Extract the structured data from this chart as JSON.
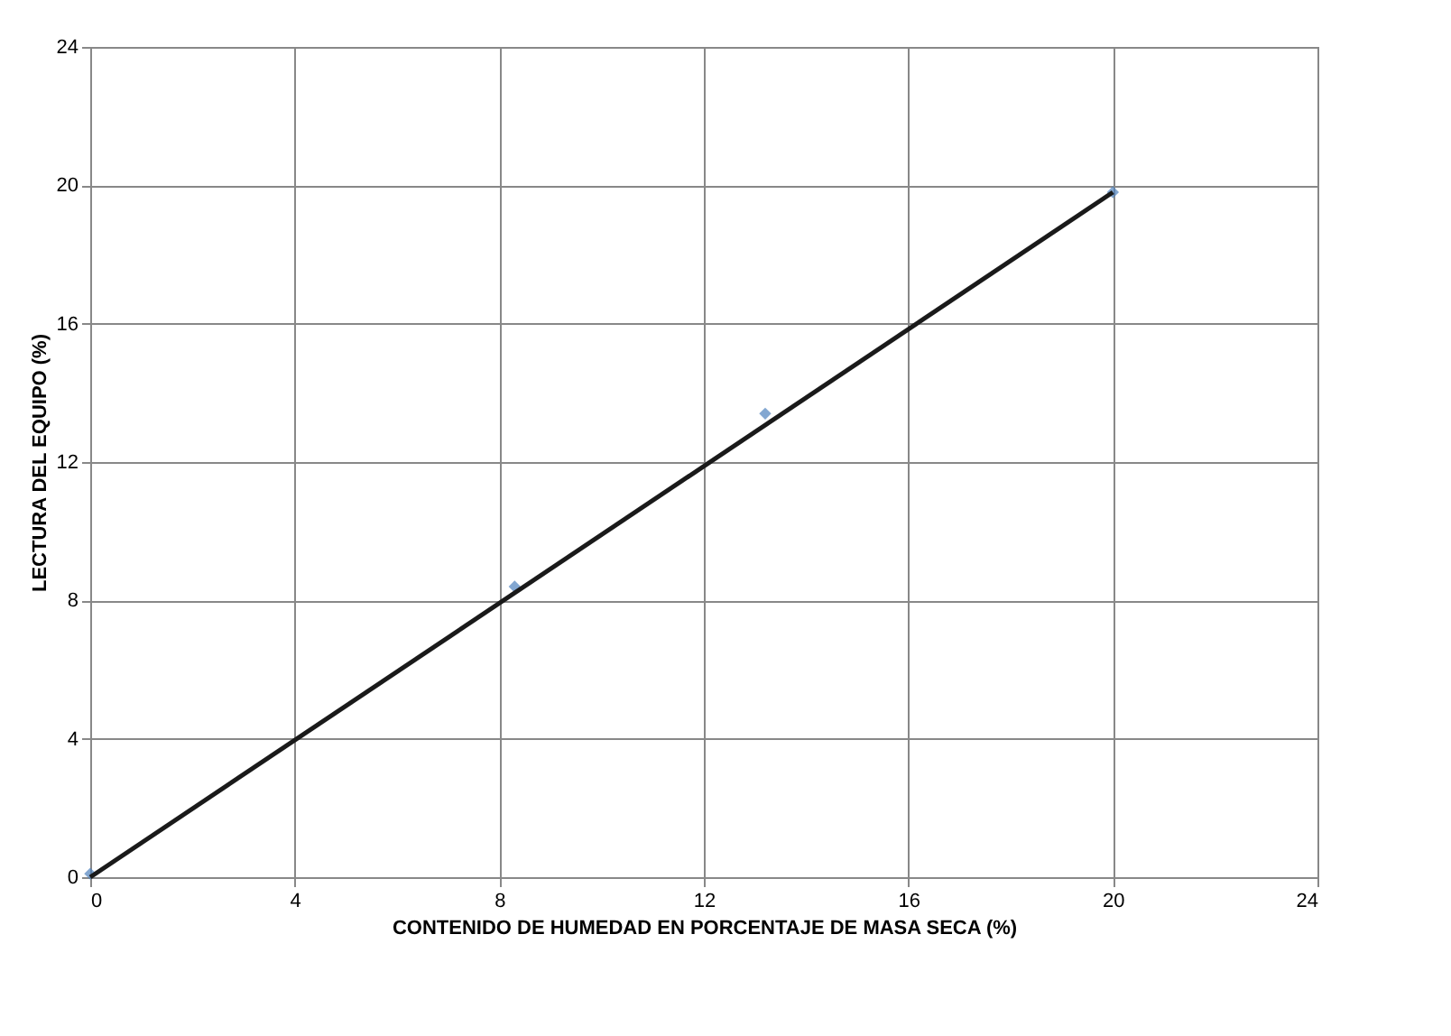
{
  "chart_data": {
    "type": "scatter",
    "xlabel": "CONTENIDO DE HUMEDAD EN PORCENTAJE DE MASA SECA (%)",
    "ylabel": "LECTURA DEL EQUIPO (%)",
    "series": [
      {
        "color": "#4f81bd",
        "x": [
          0,
          8.3,
          13.2,
          20
        ],
        "values": [
          0.1,
          8.4,
          13.4,
          19.8
        ],
        "marker": "diamond"
      },
      {
        "type": "line",
        "color": "#1a1a1a",
        "x": [
          0,
          20
        ],
        "values": [
          0,
          19.8
        ],
        "marker": "none",
        "line_style": "solid"
      }
    ],
    "xlim": [
      0,
      24
    ],
    "ylim": [
      0,
      24
    ],
    "xticks": [
      0,
      4,
      8,
      12,
      16,
      20,
      24
    ],
    "yticks": [
      0,
      4,
      8,
      12,
      16,
      20,
      24
    ],
    "grid": true
  }
}
